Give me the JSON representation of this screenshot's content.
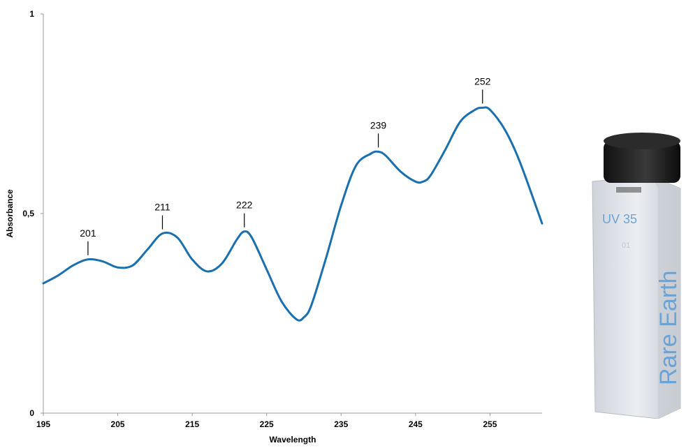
{
  "chart_data": {
    "type": "line",
    "title": "",
    "xlabel": "Wavelength",
    "ylabel": "Absorbance",
    "xlim": [
      195,
      262
    ],
    "ylim": [
      0,
      1
    ],
    "x_ticks": [
      "195",
      "205",
      "215",
      "225",
      "235",
      "245",
      "255"
    ],
    "y_ticks": [
      "0",
      "0,5",
      "1"
    ],
    "grid": false,
    "legend": "none",
    "series_color": "#1a6fae",
    "series": [
      {
        "x": [
          195,
          197,
          199,
          201,
          203,
          205,
          207,
          209,
          211,
          213,
          215,
          217,
          219,
          221,
          222,
          223,
          225,
          227,
          229,
          230,
          231,
          233,
          235,
          237,
          239,
          240,
          241,
          243,
          245,
          246,
          247,
          249,
          251,
          253,
          254,
          255,
          257,
          259,
          262
        ],
        "y": [
          0.325,
          0.345,
          0.37,
          0.385,
          0.38,
          0.365,
          0.37,
          0.41,
          0.45,
          0.44,
          0.385,
          0.355,
          0.375,
          0.435,
          0.455,
          0.44,
          0.36,
          0.28,
          0.235,
          0.24,
          0.27,
          0.39,
          0.52,
          0.62,
          0.65,
          0.655,
          0.645,
          0.605,
          0.58,
          0.58,
          0.595,
          0.66,
          0.73,
          0.76,
          0.765,
          0.76,
          0.71,
          0.63,
          0.475
        ]
      }
    ],
    "annotations": [
      {
        "label": "201",
        "x": 201,
        "y": 0.385
      },
      {
        "label": "211",
        "x": 211,
        "y": 0.45
      },
      {
        "label": "222",
        "x": 222,
        "y": 0.455
      },
      {
        "label": "239",
        "x": 240,
        "y": 0.655
      },
      {
        "label": "252",
        "x": 254,
        "y": 0.765
      }
    ]
  },
  "cuvette": {
    "code": "UV 35",
    "small_mark": "01",
    "brand_text": "Rare Earth",
    "text_color": "#6aa3d6",
    "cap_color": "#1c1c1c",
    "glass_color": "#d9dde3"
  }
}
